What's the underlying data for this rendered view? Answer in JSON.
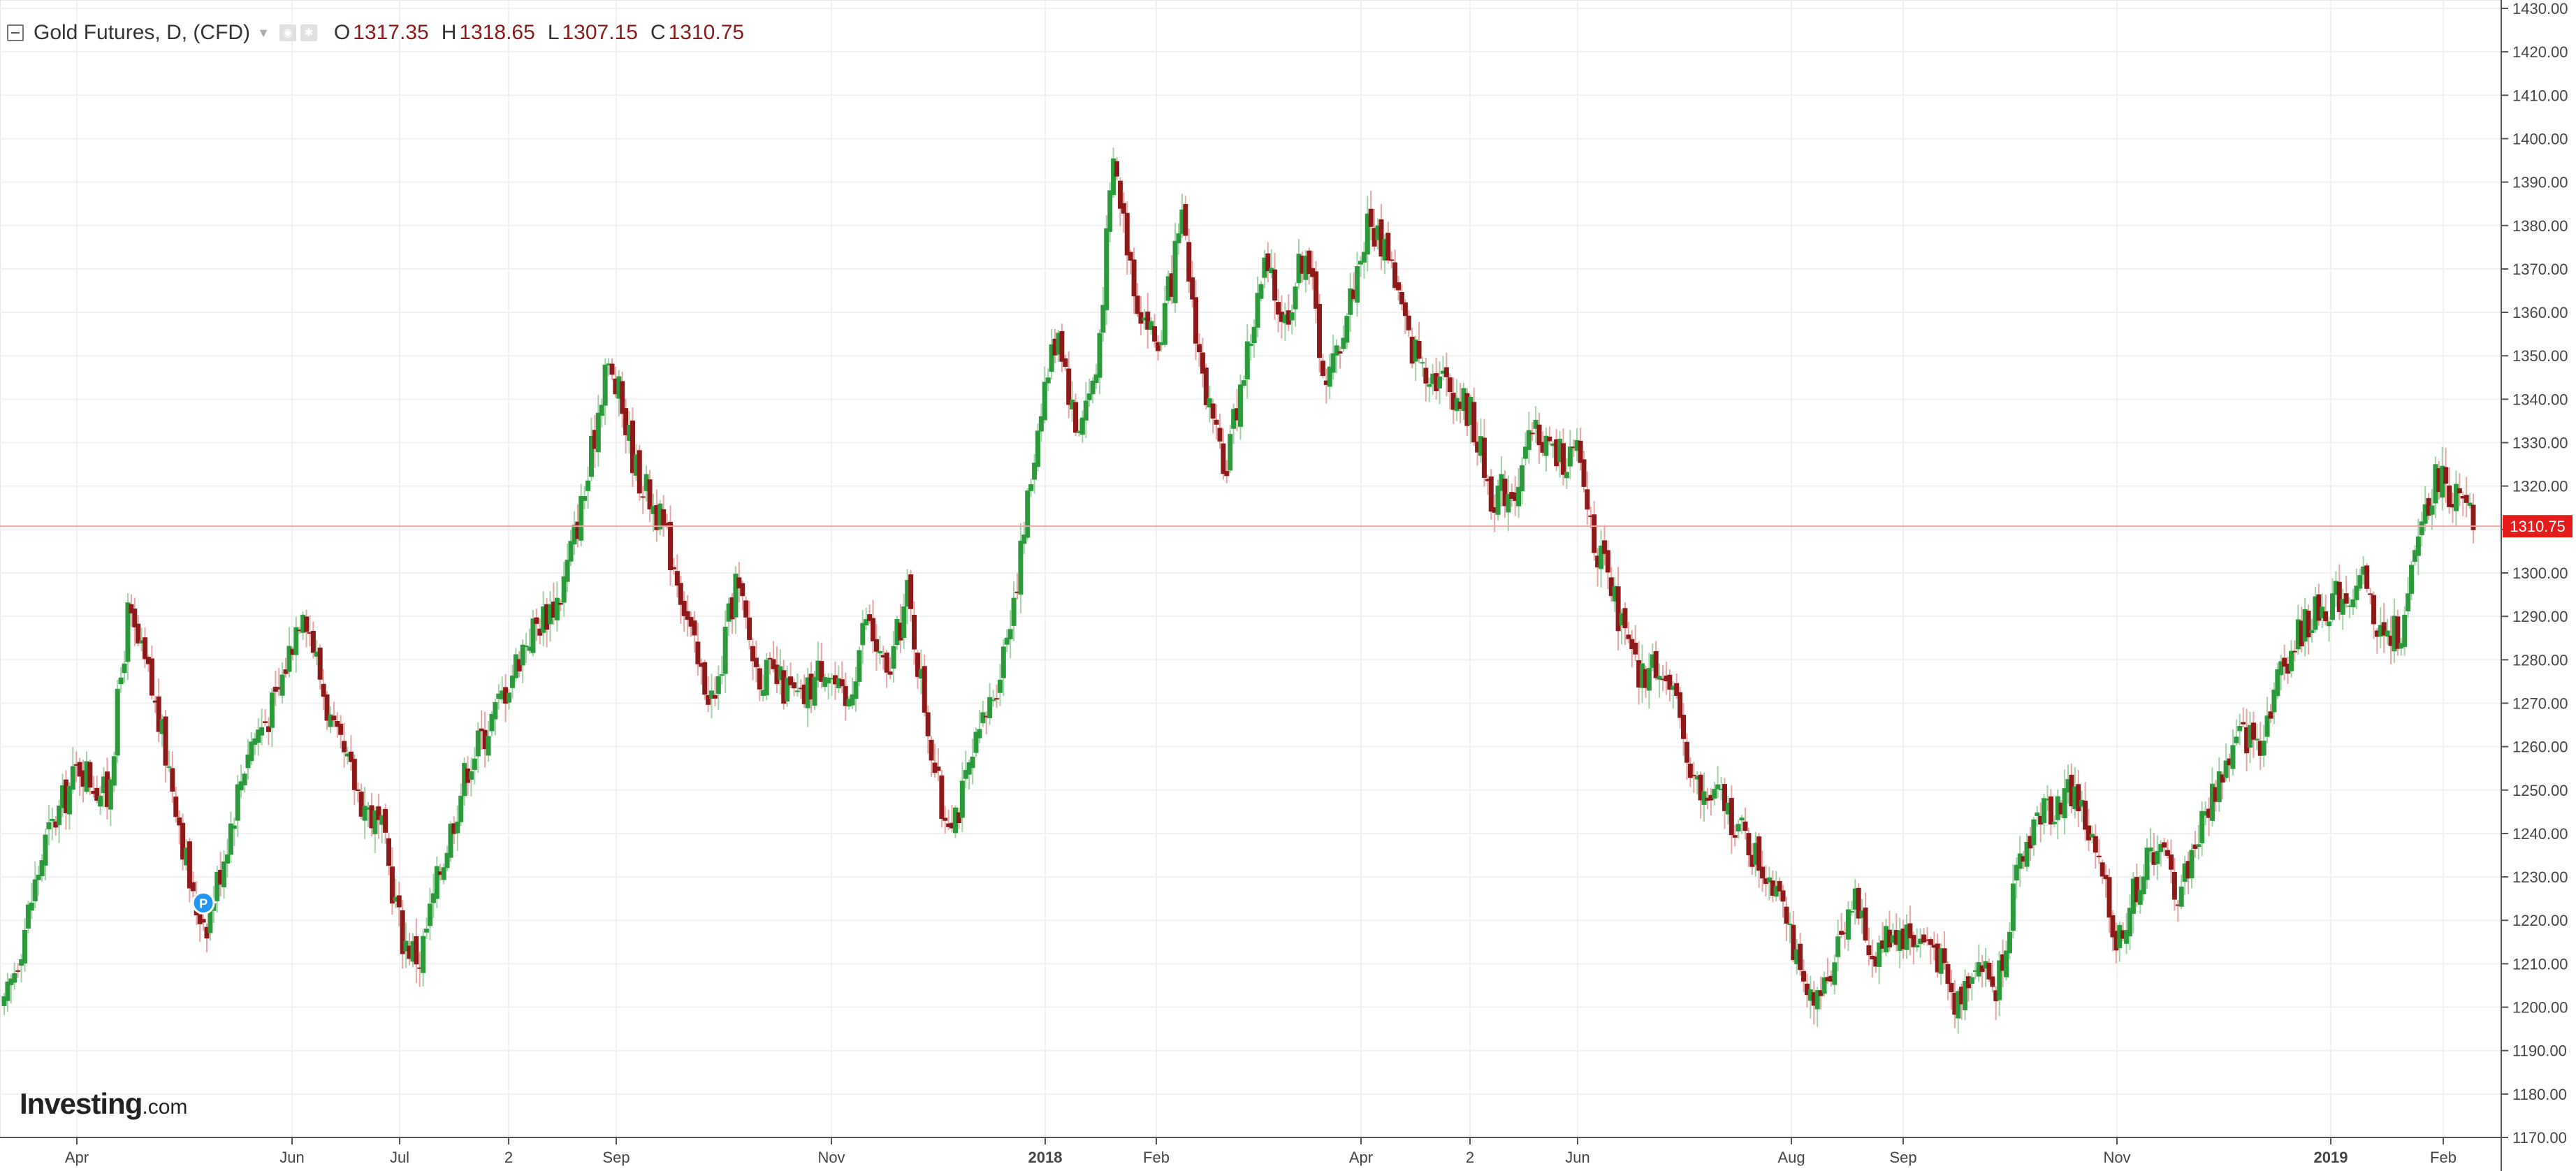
{
  "legend": {
    "symbol": "Gold Futures, D, (CFD)",
    "o_label": "O",
    "o_value": "1317.35",
    "h_label": "H",
    "h_value": "1318.65",
    "l_label": "L",
    "l_value": "1307.15",
    "c_label": "C",
    "c_value": "1310.75",
    "icons": [
      "collapse-icon",
      "eye-icon",
      "settings-icon"
    ]
  },
  "brand": {
    "name": "Investing",
    "suffix": ".com"
  },
  "colors": {
    "up": "#2b9a3a",
    "down": "#8e1919",
    "grid": "#f1f1f1",
    "price_line": "#f4a6a6",
    "price_tag": "#e31b1b",
    "axis": "#444444",
    "marker": "#2196f3"
  },
  "chart_data": {
    "type": "candlestick",
    "title": "Gold Futures, D, (CFD)",
    "ylim": [
      1170,
      1430
    ],
    "y_ticks": [
      "1170.00",
      "1180.00",
      "1190.00",
      "1200.00",
      "1210.00",
      "1220.00",
      "1230.00",
      "1240.00",
      "1250.00",
      "1260.00",
      "1270.00",
      "1280.00",
      "1290.00",
      "1300.00",
      "1310.00",
      "1320.00",
      "1330.00",
      "1340.00",
      "1350.00",
      "1360.00",
      "1370.00",
      "1380.00",
      "1390.00",
      "1400.00",
      "1410.00",
      "1420.00",
      "1430.00"
    ],
    "x_labels": [
      "Apr",
      "Jun",
      "Jul",
      "2",
      "Sep",
      "Nov",
      "2018",
      "Feb",
      "Apr",
      "2",
      "Jun",
      "Aug",
      "Sep",
      "Nov",
      "2019",
      "Feb"
    ],
    "current_price": "1310.75",
    "marker": "P",
    "close_path": [
      {
        "t": 0,
        "c": 1199
      },
      {
        "t": 12,
        "c": 1238
      },
      {
        "t": 22,
        "c": 1256
      },
      {
        "t": 30,
        "c": 1248
      },
      {
        "t": 36,
        "c": 1290
      },
      {
        "t": 42,
        "c": 1276
      },
      {
        "t": 50,
        "c": 1248
      },
      {
        "t": 55,
        "c": 1224
      },
      {
        "t": 59,
        "c": 1220
      },
      {
        "t": 63,
        "c": 1232
      },
      {
        "t": 71,
        "c": 1260
      },
      {
        "t": 79,
        "c": 1270
      },
      {
        "t": 87,
        "c": 1294
      },
      {
        "t": 96,
        "c": 1262
      },
      {
        "t": 104,
        "c": 1248
      },
      {
        "t": 110,
        "c": 1240
      },
      {
        "t": 116,
        "c": 1216
      },
      {
        "t": 121,
        "c": 1211
      },
      {
        "t": 127,
        "c": 1232
      },
      {
        "t": 135,
        "c": 1256
      },
      {
        "t": 143,
        "c": 1268
      },
      {
        "t": 152,
        "c": 1285
      },
      {
        "t": 162,
        "c": 1295
      },
      {
        "t": 170,
        "c": 1322
      },
      {
        "t": 175,
        "c": 1348
      },
      {
        "t": 179,
        "c": 1341
      },
      {
        "t": 184,
        "c": 1324
      },
      {
        "t": 190,
        "c": 1314
      },
      {
        "t": 196,
        "c": 1300
      },
      {
        "t": 202,
        "c": 1278
      },
      {
        "t": 207,
        "c": 1270
      },
      {
        "t": 213,
        "c": 1298
      },
      {
        "t": 219,
        "c": 1278
      },
      {
        "t": 225,
        "c": 1275
      },
      {
        "t": 232,
        "c": 1270
      },
      {
        "t": 239,
        "c": 1280
      },
      {
        "t": 245,
        "c": 1268
      },
      {
        "t": 251,
        "c": 1290
      },
      {
        "t": 257,
        "c": 1275
      },
      {
        "t": 263,
        "c": 1295
      },
      {
        "t": 268,
        "c": 1270
      },
      {
        "t": 273,
        "c": 1245
      },
      {
        "t": 278,
        "c": 1246
      },
      {
        "t": 284,
        "c": 1262
      },
      {
        "t": 290,
        "c": 1278
      },
      {
        "t": 296,
        "c": 1304
      },
      {
        "t": 302,
        "c": 1340
      },
      {
        "t": 307,
        "c": 1357
      },
      {
        "t": 312,
        "c": 1333
      },
      {
        "t": 318,
        "c": 1346
      },
      {
        "t": 323,
        "c": 1395
      },
      {
        "t": 330,
        "c": 1363
      },
      {
        "t": 336,
        "c": 1352
      },
      {
        "t": 343,
        "c": 1380
      },
      {
        "t": 349,
        "c": 1345
      },
      {
        "t": 355,
        "c": 1322
      },
      {
        "t": 361,
        "c": 1347
      },
      {
        "t": 367,
        "c": 1370
      },
      {
        "t": 373,
        "c": 1358
      },
      {
        "t": 379,
        "c": 1376
      },
      {
        "t": 385,
        "c": 1342
      },
      {
        "t": 391,
        "c": 1360
      },
      {
        "t": 397,
        "c": 1380
      },
      {
        "t": 403,
        "c": 1375
      },
      {
        "t": 409,
        "c": 1353
      },
      {
        "t": 415,
        "c": 1347
      },
      {
        "t": 421,
        "c": 1343
      },
      {
        "t": 427,
        "c": 1337
      },
      {
        "t": 433,
        "c": 1318
      },
      {
        "t": 440,
        "c": 1320
      },
      {
        "t": 446,
        "c": 1333
      },
      {
        "t": 452,
        "c": 1327
      },
      {
        "t": 458,
        "c": 1327
      },
      {
        "t": 464,
        "c": 1305
      },
      {
        "t": 470,
        "c": 1290
      },
      {
        "t": 476,
        "c": 1275
      },
      {
        "t": 482,
        "c": 1280
      },
      {
        "t": 488,
        "c": 1265
      },
      {
        "t": 494,
        "c": 1248
      },
      {
        "t": 500,
        "c": 1248
      },
      {
        "t": 506,
        "c": 1240
      },
      {
        "t": 512,
        "c": 1232
      },
      {
        "t": 518,
        "c": 1228
      },
      {
        "t": 523,
        "c": 1205
      },
      {
        "t": 527,
        "c": 1198
      },
      {
        "t": 532,
        "c": 1210
      },
      {
        "t": 538,
        "c": 1226
      },
      {
        "t": 544,
        "c": 1212
      },
      {
        "t": 550,
        "c": 1218
      },
      {
        "t": 556,
        "c": 1216
      },
      {
        "t": 562,
        "c": 1214
      },
      {
        "t": 568,
        "c": 1200
      },
      {
        "t": 574,
        "c": 1212
      },
      {
        "t": 580,
        "c": 1204
      },
      {
        "t": 585,
        "c": 1226
      },
      {
        "t": 591,
        "c": 1243
      },
      {
        "t": 597,
        "c": 1247
      },
      {
        "t": 603,
        "c": 1250
      },
      {
        "t": 609,
        "c": 1235
      },
      {
        "t": 615,
        "c": 1215
      },
      {
        "t": 621,
        "c": 1228
      },
      {
        "t": 627,
        "c": 1238
      },
      {
        "t": 633,
        "c": 1226
      },
      {
        "t": 639,
        "c": 1240
      },
      {
        "t": 645,
        "c": 1253
      },
      {
        "t": 651,
        "c": 1262
      },
      {
        "t": 657,
        "c": 1262
      },
      {
        "t": 663,
        "c": 1278
      },
      {
        "t": 669,
        "c": 1287
      },
      {
        "t": 675,
        "c": 1292
      },
      {
        "t": 681,
        "c": 1295
      },
      {
        "t": 687,
        "c": 1297
      },
      {
        "t": 693,
        "c": 1284
      },
      {
        "t": 699,
        "c": 1288
      },
      {
        "t": 704,
        "c": 1313
      },
      {
        "t": 709,
        "c": 1323
      },
      {
        "t": 714,
        "c": 1317
      },
      {
        "t": 719,
        "c": 1311
      }
    ]
  }
}
